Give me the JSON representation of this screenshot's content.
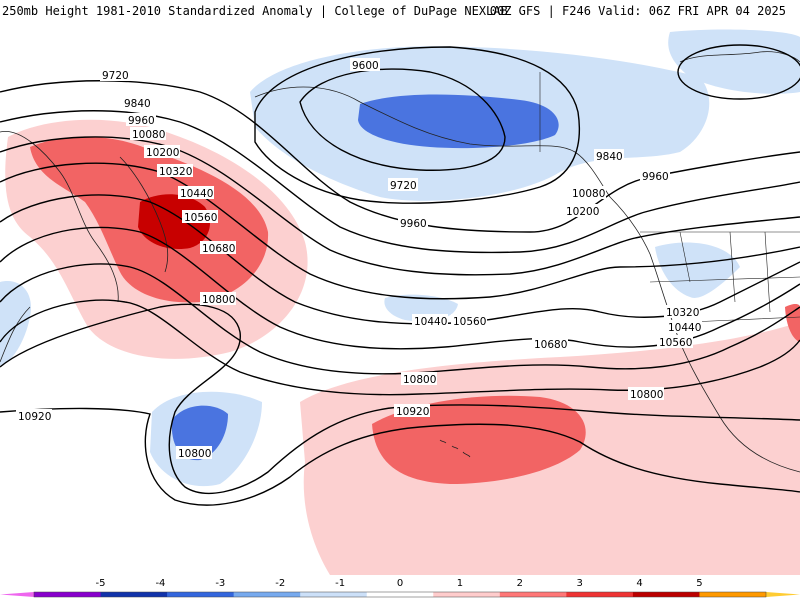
{
  "header": {
    "title_left": "250mb Height 1981-2010 Standardized Anomaly | College of DuPage NEXLAB",
    "title_right": "00Z GFS | F246 Valid: 06Z FRI APR 04 2025"
  },
  "contour_labels": [
    "9600",
    "9720",
    "9720",
    "9840",
    "9840",
    "9960",
    "9960",
    "9960",
    "10080",
    "10080",
    "10200",
    "10200",
    "10320",
    "10320",
    "10440",
    "10440",
    "10440",
    "10560",
    "10560",
    "10560",
    "10680",
    "10680",
    "10800",
    "10800",
    "10800",
    "10800",
    "10920",
    "10920"
  ],
  "colorbar": {
    "ticks": [
      "-5",
      "-4",
      "-3",
      "-2",
      "-1",
      "0",
      "1",
      "2",
      "3",
      "4",
      "5"
    ],
    "colors": [
      "#ee66ee",
      "#8800cc",
      "#1133aa",
      "#3366dd",
      "#77aaee",
      "#cce0f8",
      "#ffffff",
      "#ffcccc",
      "#ff7777",
      "#ee3333",
      "#bb0000",
      "#ff9900",
      "#ffcc33"
    ]
  },
  "legend": {
    "shading": "standardized anomaly",
    "positive_colors": [
      "#fcd0d0",
      "#f26464",
      "#c80000"
    ],
    "negative_colors": [
      "#cfe2f8",
      "#4a74e0"
    ]
  }
}
